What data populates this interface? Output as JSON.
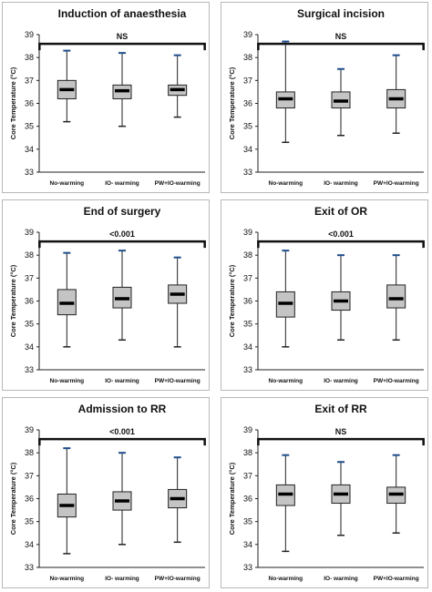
{
  "chart_data": [
    {
      "type": "box",
      "title": "Induction of anaesthesia",
      "significance": "NS",
      "ylabel": "Core Temperature (°C)",
      "ylim": [
        33,
        39
      ],
      "yticks": [
        "33",
        "34",
        "35",
        "36",
        "37",
        "38",
        "39"
      ],
      "categories": [
        "No-warming",
        "IO- warming",
        "PW+IO-warming"
      ],
      "boxes": [
        {
          "min": 35.2,
          "q1": 36.2,
          "median": 36.6,
          "q3": 37.0,
          "max": 38.3
        },
        {
          "min": 35.0,
          "q1": 36.2,
          "median": 36.55,
          "q3": 36.8,
          "max": 38.2
        },
        {
          "min": 35.4,
          "q1": 36.35,
          "median": 36.6,
          "q3": 36.8,
          "max": 38.1
        }
      ]
    },
    {
      "type": "box",
      "title": "Surgical incision",
      "significance": "NS",
      "ylabel": "Core Temperature (°C)",
      "ylim": [
        33,
        39
      ],
      "yticks": [
        "33",
        "34",
        "35",
        "36",
        "37",
        "38",
        "39"
      ],
      "categories": [
        "No-warming",
        "IO- warming",
        "PW+IO-warming"
      ],
      "boxes": [
        {
          "min": 34.3,
          "q1": 35.8,
          "median": 36.2,
          "q3": 36.5,
          "max": 38.7
        },
        {
          "min": 34.6,
          "q1": 35.8,
          "median": 36.1,
          "q3": 36.5,
          "max": 37.5
        },
        {
          "min": 34.7,
          "q1": 35.8,
          "median": 36.2,
          "q3": 36.6,
          "max": 38.1
        }
      ]
    },
    {
      "type": "box",
      "title": "End of surgery",
      "significance": "<0.001",
      "ylabel": "Core Temperature (°C)",
      "ylim": [
        33,
        39
      ],
      "yticks": [
        "33",
        "34",
        "35",
        "36",
        "37",
        "38",
        "39"
      ],
      "categories": [
        "No-warming",
        "IO- warming",
        "PW+IO-warming"
      ],
      "boxes": [
        {
          "min": 34.0,
          "q1": 35.4,
          "median": 35.9,
          "q3": 36.5,
          "max": 38.1
        },
        {
          "min": 34.3,
          "q1": 35.7,
          "median": 36.1,
          "q3": 36.6,
          "max": 38.2
        },
        {
          "min": 34.0,
          "q1": 35.9,
          "median": 36.3,
          "q3": 36.7,
          "max": 37.9
        }
      ]
    },
    {
      "type": "box",
      "title": "Exit of OR",
      "significance": "<0.001",
      "ylabel": "Core Temperature (°C)",
      "ylim": [
        33,
        39
      ],
      "yticks": [
        "33",
        "34",
        "35",
        "36",
        "37",
        "38",
        "39"
      ],
      "categories": [
        "No-warming",
        "IO- warming",
        "PW+IO-warming"
      ],
      "boxes": [
        {
          "min": 34.0,
          "q1": 35.3,
          "median": 35.9,
          "q3": 36.4,
          "max": 38.2
        },
        {
          "min": 34.3,
          "q1": 35.6,
          "median": 36.0,
          "q3": 36.4,
          "max": 38.0
        },
        {
          "min": 34.3,
          "q1": 35.7,
          "median": 36.1,
          "q3": 36.7,
          "max": 38.0
        }
      ]
    },
    {
      "type": "box",
      "title": "Admission to RR",
      "significance": "<0.001",
      "ylabel": "Core Temperature (°C)",
      "ylim": [
        33,
        39
      ],
      "yticks": [
        "33",
        "34",
        "35",
        "36",
        "37",
        "38",
        "39"
      ],
      "categories": [
        "No-warming",
        "IO- warming",
        "PW+IO-warming"
      ],
      "boxes": [
        {
          "min": 33.6,
          "q1": 35.2,
          "median": 35.7,
          "q3": 36.2,
          "max": 38.2
        },
        {
          "min": 34.0,
          "q1": 35.5,
          "median": 35.9,
          "q3": 36.3,
          "max": 38.0
        },
        {
          "min": 34.1,
          "q1": 35.6,
          "median": 36.0,
          "q3": 36.4,
          "max": 37.8
        }
      ]
    },
    {
      "type": "box",
      "title": "Exit of RR",
      "significance": "NS",
      "ylabel": "Core Temperature (°C)",
      "ylim": [
        33,
        39
      ],
      "yticks": [
        "33",
        "34",
        "35",
        "36",
        "37",
        "38",
        "39"
      ],
      "categories": [
        "No-warming",
        "IO- warming",
        "PW+IO-warming"
      ],
      "boxes": [
        {
          "min": 33.7,
          "q1": 35.7,
          "median": 36.2,
          "q3": 36.6,
          "max": 37.9
        },
        {
          "min": 34.4,
          "q1": 35.8,
          "median": 36.2,
          "q3": 36.6,
          "max": 37.6
        },
        {
          "min": 34.5,
          "q1": 35.8,
          "median": 36.2,
          "q3": 36.5,
          "max": 37.9
        }
      ]
    }
  ],
  "colors": {
    "box_fill": "#c4c4c4",
    "box_stroke": "#222222",
    "median": "#000000",
    "whisker_cap": "#1f4e8c",
    "axis": "#222222",
    "border": "#b8b8b8"
  }
}
